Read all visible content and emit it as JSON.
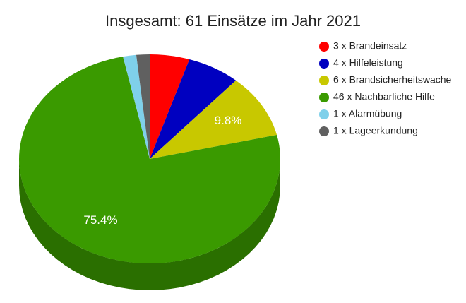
{
  "chart_data": {
    "type": "pie",
    "title": "Insgesamt: 61 Einsätze im Jahr 2021",
    "categories": [
      "3 x Brandeinsatz",
      "4 x Hilfeleistung",
      "6 x Brandsicherheitswache",
      "46 x Nachbarliche Hilfe",
      "1 x Alarmübung",
      "1 x Lageerkundung"
    ],
    "values": [
      4.918,
      6.557,
      9.836,
      75.41,
      1.639,
      1.639
    ],
    "value_labels": [
      null,
      null,
      "9.8%",
      "75.4%",
      null,
      null
    ],
    "colors": [
      "#ff0000",
      "#0000c0",
      "#c8c800",
      "#3a9a00",
      "#7fd0ea",
      "#606060"
    ],
    "legend": "right"
  }
}
